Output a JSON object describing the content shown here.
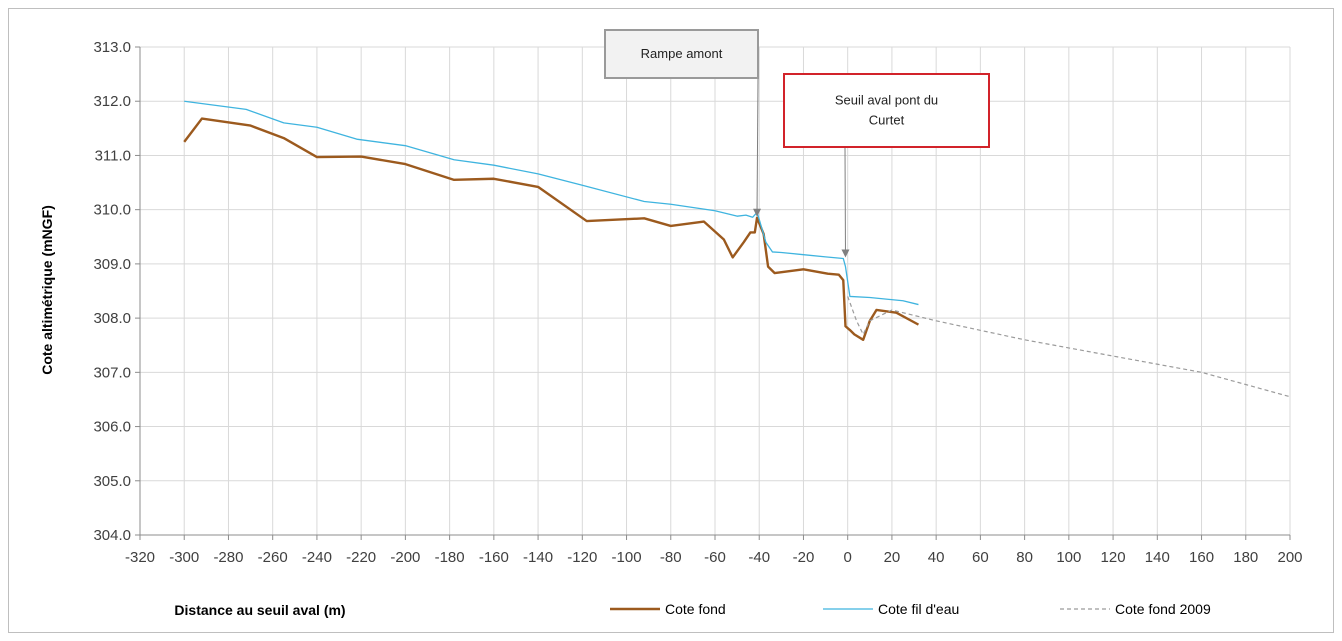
{
  "chart_data": {
    "type": "line",
    "title": "",
    "xlabel": "Distance au seuil aval (m)",
    "ylabel": "Cote altimétrique (mNGF)",
    "xlim": [
      -320,
      200
    ],
    "ylim": [
      304.0,
      313.0
    ],
    "x_ticks": [
      -320,
      -300,
      -280,
      -260,
      -240,
      -220,
      -200,
      -180,
      -160,
      -140,
      -120,
      -100,
      -80,
      -60,
      -40,
      -20,
      0,
      20,
      40,
      60,
      80,
      100,
      120,
      140,
      160,
      180,
      200
    ],
    "y_ticks": [
      304.0,
      305.0,
      306.0,
      307.0,
      308.0,
      309.0,
      310.0,
      311.0,
      312.0,
      313.0
    ],
    "grid": true,
    "legend_position": "bottom",
    "series": [
      {
        "name": "Cote fond",
        "color": "#9c5a1e",
        "style": "solid-thick",
        "points": [
          [
            -300,
            311.25
          ],
          [
            -292,
            311.68
          ],
          [
            -270,
            311.55
          ],
          [
            -255,
            311.32
          ],
          [
            -240,
            310.97
          ],
          [
            -220,
            310.98
          ],
          [
            -200,
            310.84
          ],
          [
            -178,
            310.55
          ],
          [
            -160,
            310.57
          ],
          [
            -140,
            310.42
          ],
          [
            -118,
            309.79
          ],
          [
            -92,
            309.84
          ],
          [
            -80,
            309.7
          ],
          [
            -65,
            309.78
          ],
          [
            -56,
            309.45
          ],
          [
            -52,
            309.12
          ],
          [
            -47,
            309.4
          ],
          [
            -44,
            309.58
          ],
          [
            -42,
            309.58
          ],
          [
            -41,
            309.85
          ],
          [
            -38,
            309.55
          ],
          [
            -36,
            308.95
          ],
          [
            -33,
            308.83
          ],
          [
            -20,
            308.9
          ],
          [
            -9,
            308.82
          ],
          [
            -4,
            308.8
          ],
          [
            -2,
            308.7
          ],
          [
            -1,
            307.85
          ],
          [
            1,
            307.78
          ],
          [
            3,
            307.7
          ],
          [
            7,
            307.6
          ],
          [
            10,
            307.95
          ],
          [
            13,
            308.15
          ],
          [
            22,
            308.1
          ],
          [
            32,
            307.88
          ]
        ]
      },
      {
        "name": "Cote fil d'eau",
        "color": "#3fb4df",
        "style": "solid-thin",
        "points": [
          [
            -300,
            312.0
          ],
          [
            -272,
            311.85
          ],
          [
            -255,
            311.6
          ],
          [
            -240,
            311.52
          ],
          [
            -222,
            311.3
          ],
          [
            -200,
            311.18
          ],
          [
            -178,
            310.92
          ],
          [
            -160,
            310.82
          ],
          [
            -140,
            310.66
          ],
          [
            -120,
            310.45
          ],
          [
            -92,
            310.15
          ],
          [
            -80,
            310.1
          ],
          [
            -60,
            309.98
          ],
          [
            -50,
            309.88
          ],
          [
            -46,
            309.9
          ],
          [
            -43,
            309.86
          ],
          [
            -41,
            309.95
          ],
          [
            -40,
            309.82
          ],
          [
            -37,
            309.4
          ],
          [
            -34,
            309.22
          ],
          [
            -30,
            309.21
          ],
          [
            -20,
            309.17
          ],
          [
            -10,
            309.13
          ],
          [
            -2,
            309.1
          ],
          [
            -1,
            308.95
          ],
          [
            1,
            308.4
          ],
          [
            10,
            308.38
          ],
          [
            25,
            308.32
          ],
          [
            32,
            308.25
          ]
        ]
      },
      {
        "name": "Cote fond 2009",
        "color": "#9b9b9b",
        "style": "dashed",
        "points": [
          [
            0,
            308.4
          ],
          [
            4,
            307.95
          ],
          [
            7,
            307.7
          ],
          [
            10,
            307.95
          ],
          [
            20,
            308.15
          ],
          [
            40,
            307.95
          ],
          [
            80,
            307.6
          ],
          [
            120,
            307.3
          ],
          [
            160,
            307.0
          ],
          [
            200,
            306.55
          ]
        ]
      }
    ],
    "annotations": [
      {
        "name": "callout-rampe-amont",
        "lines": [
          "Rampe amont"
        ],
        "target": [
          -41,
          309.85
        ],
        "border_color": "#9a9a9a",
        "fill": "#f2f2f2"
      },
      {
        "name": "callout-seuil-aval",
        "lines": [
          "Seuil aval pont du",
          "Curtet"
        ],
        "target": [
          -1,
          309.1
        ],
        "border_color": "#d2232a",
        "fill": "#ffffff"
      }
    ]
  }
}
